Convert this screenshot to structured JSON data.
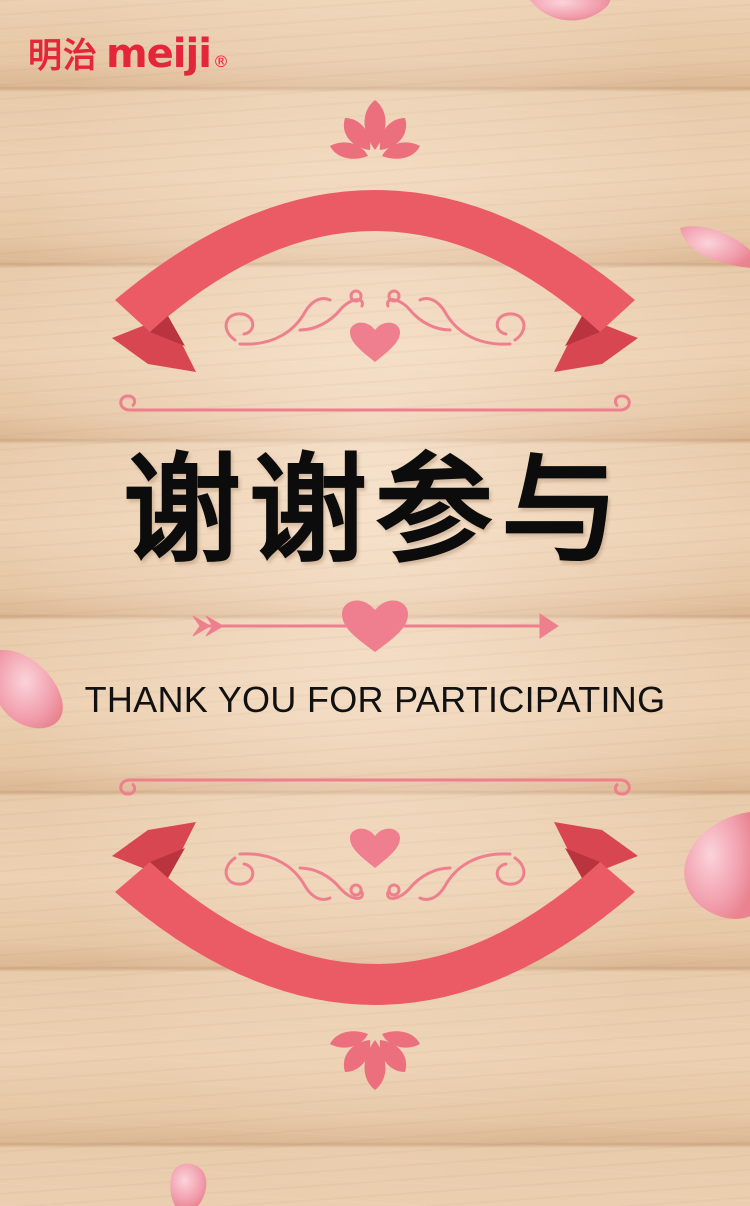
{
  "brand": {
    "name_cn": "明治",
    "name_en": "meiji",
    "registered_mark": "®",
    "color": "#e3263a"
  },
  "message": {
    "title_cn": "谢谢参与",
    "title_en": "THANK YOU FOR PARTICIPATING"
  },
  "theme": {
    "ribbon_color": "#ea5b66",
    "ornament_color": "#ee7f8d",
    "petal_color": "#f3a7b2"
  },
  "icons": [
    "heart-icon",
    "arrow-icon",
    "flourish-icon",
    "rose-petal-icon"
  ]
}
